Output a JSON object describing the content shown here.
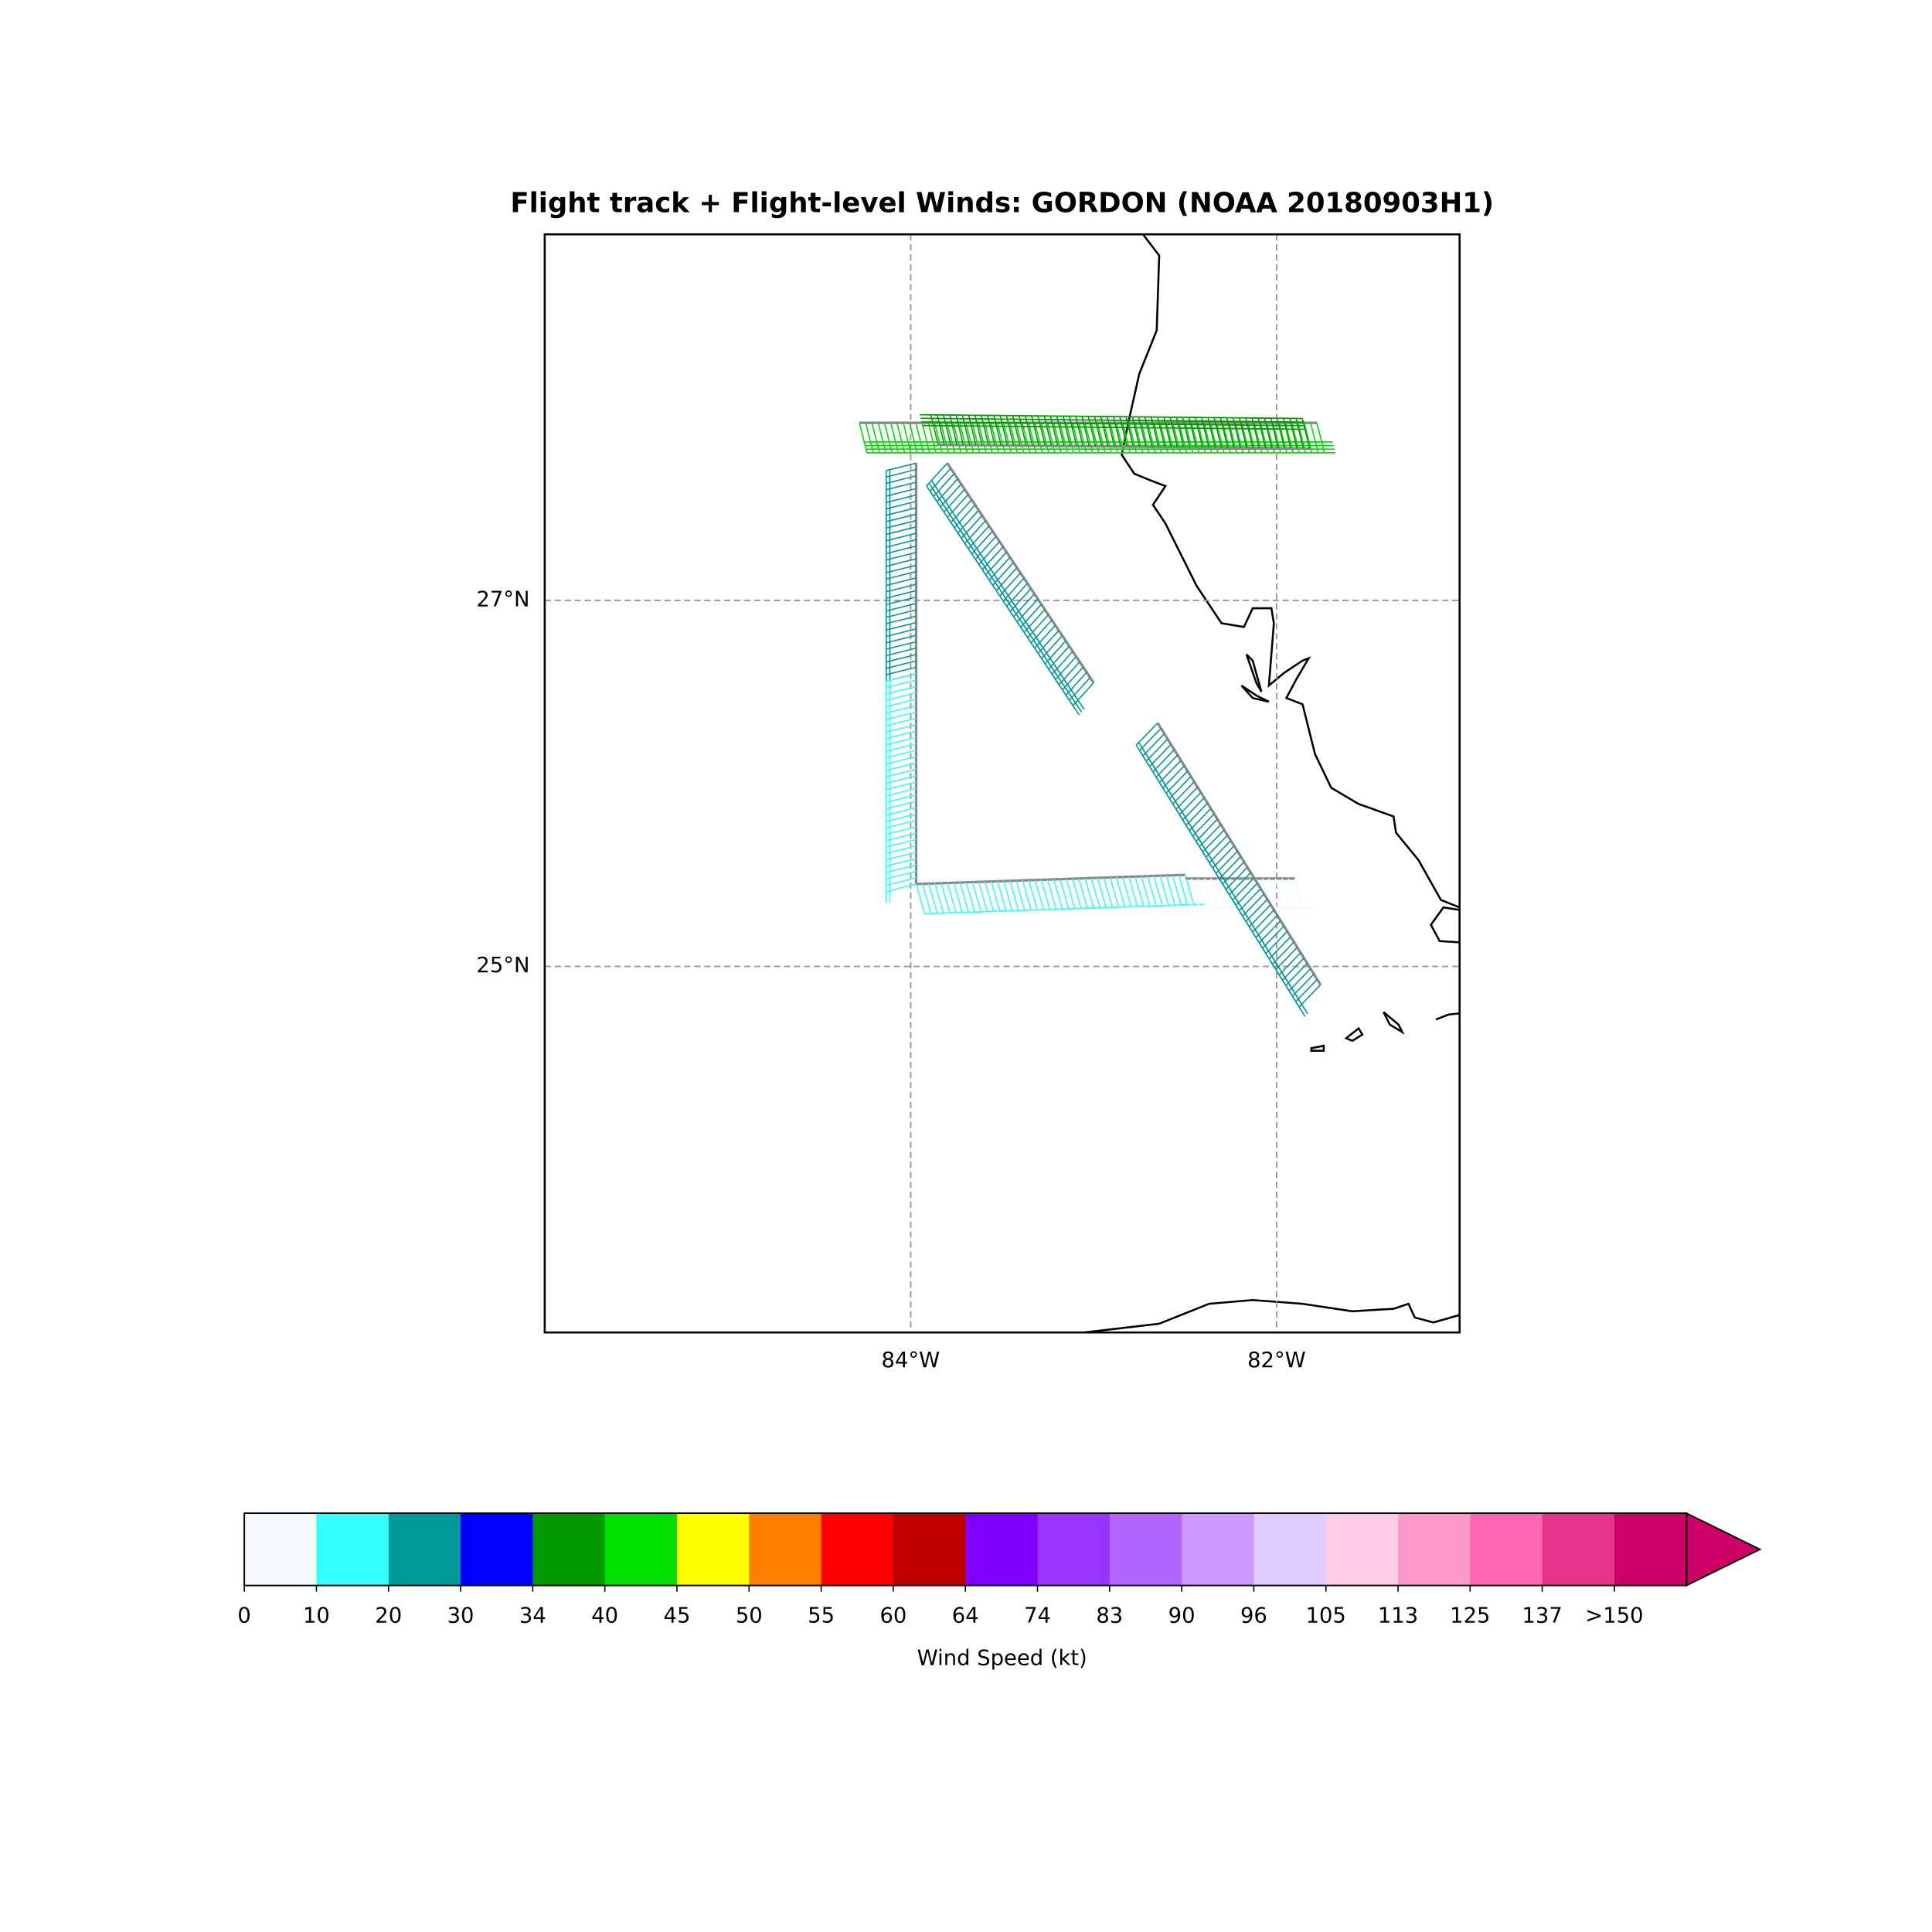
{
  "title": "Flight track + Flight-level Winds: GORDON (NOAA 20180903H1)",
  "map": {
    "xlim": [
      -86,
      -81
    ],
    "ylim": [
      23,
      29
    ],
    "xticks": [
      {
        "value": -84,
        "label": "84°W"
      },
      {
        "value": -82,
        "label": "82°W"
      }
    ],
    "yticks": [
      {
        "value": 25,
        "label": "25°N"
      },
      {
        "value": 27,
        "label": "27°N"
      }
    ],
    "grid": true,
    "track": [
      {
        "points": [
          [
            -84.28,
            27.97
          ],
          [
            -81.78,
            27.97
          ]
        ],
        "speed": 40
      },
      {
        "points": [
          [
            -81.82,
            27.83
          ],
          [
            -83.85,
            27.85
          ]
        ],
        "speed": 38
      },
      {
        "points": [
          [
            -83.97,
            27.75
          ],
          [
            -83.97,
            26.6
          ]
        ],
        "speed": 22
      },
      {
        "points": [
          [
            -83.97,
            26.6
          ],
          [
            -83.97,
            25.45
          ]
        ],
        "speed": 15
      },
      {
        "points": [
          [
            -83.97,
            25.45
          ],
          [
            -82.5,
            25.5
          ]
        ],
        "speed": 12
      },
      {
        "points": [
          [
            -82.5,
            25.48
          ],
          [
            -81.9,
            25.48
          ]
        ],
        "speed": 5
      },
      {
        "points": [
          [
            -83.8,
            27.75
          ],
          [
            -83.0,
            26.55
          ]
        ],
        "speed": 27
      },
      {
        "points": [
          [
            -82.65,
            26.33
          ],
          [
            -81.76,
            24.9
          ]
        ],
        "speed": 23
      }
    ]
  },
  "colorbar": {
    "label": "Wind Speed (kt)",
    "levels": [
      0,
      10,
      20,
      30,
      34,
      40,
      45,
      50,
      55,
      60,
      64,
      74,
      83,
      90,
      96,
      105,
      113,
      125,
      137,
      {
        "value": 150,
        "label": ">150"
      }
    ],
    "colors": [
      "#f5f8ff",
      "#33ffff",
      "#009999",
      "#0000ff",
      "#009900",
      "#00e000",
      "#ffff00",
      "#ff8000",
      "#ff0000",
      "#c00000",
      "#8000ff",
      "#9933ff",
      "#b266ff",
      "#cc99ff",
      "#e0ccff",
      "#ffcce5",
      "#ff99cc",
      "#ff66b2",
      "#e6338a",
      "#cc0066"
    ]
  }
}
